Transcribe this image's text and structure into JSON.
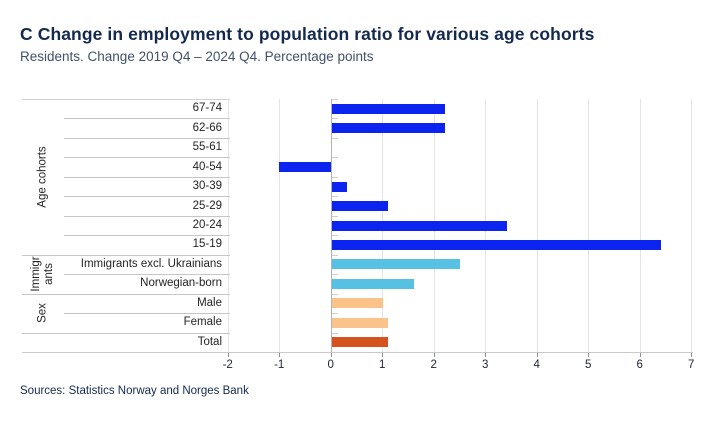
{
  "header": {
    "title": "C Change in employment to population ratio for various age cohorts",
    "subtitle": "Residents. Change 2019 Q4 – 2024 Q4. Percentage points"
  },
  "footer": {
    "sources": "Sources: Statistics Norway and Norges Bank"
  },
  "colors": {
    "title_navy": "#14294f",
    "subtitle_gray": "#42506a",
    "age_blue": "#0b24f0",
    "immigrant_lightblue": "#57c1e3",
    "sex_lightorange": "#fbc289",
    "total_orange": "#d4531f",
    "gridline": "#e4e4e4",
    "zero_axis": "#b2b2b2"
  },
  "chart_data": {
    "type": "bar",
    "orientation": "horizontal",
    "title": "C Change in employment to population ratio for various age cohorts",
    "subtitle": "Residents. Change 2019 Q4 – 2024 Q4. Percentage points",
    "xlabel": "Percentage points",
    "ylabel": "",
    "xlim": [
      -2,
      7
    ],
    "xticks": [
      -2,
      -1,
      0,
      1,
      2,
      3,
      4,
      5,
      6,
      7
    ],
    "grid": true,
    "legend": "none",
    "groups": [
      {
        "label": "Age cohorts",
        "color": "#0b24f0",
        "rows": [
          {
            "label": "67-74",
            "value": 2.2
          },
          {
            "label": "62-66",
            "value": 2.2
          },
          {
            "label": "55-61",
            "value": 0.0
          },
          {
            "label": "40-54",
            "value": -1.0
          },
          {
            "label": "30-39",
            "value": 0.3
          },
          {
            "label": "25-29",
            "value": 1.1
          },
          {
            "label": "20-24",
            "value": 3.4
          },
          {
            "label": "15-19",
            "value": 6.4
          }
        ]
      },
      {
        "label": "Immigrants",
        "color": "#57c1e3",
        "rows": [
          {
            "label": "Immigrants excl. Ukrainians",
            "value": 2.5
          },
          {
            "label": "Norwegian-born",
            "value": 1.6
          }
        ]
      },
      {
        "label": "Sex",
        "color": "#fbc289",
        "rows": [
          {
            "label": "Male",
            "value": 1.0
          },
          {
            "label": "Female",
            "value": 1.1
          }
        ]
      },
      {
        "label": "",
        "color": "#d4531f",
        "rows": [
          {
            "label": "Total",
            "value": 1.1
          }
        ]
      }
    ]
  }
}
